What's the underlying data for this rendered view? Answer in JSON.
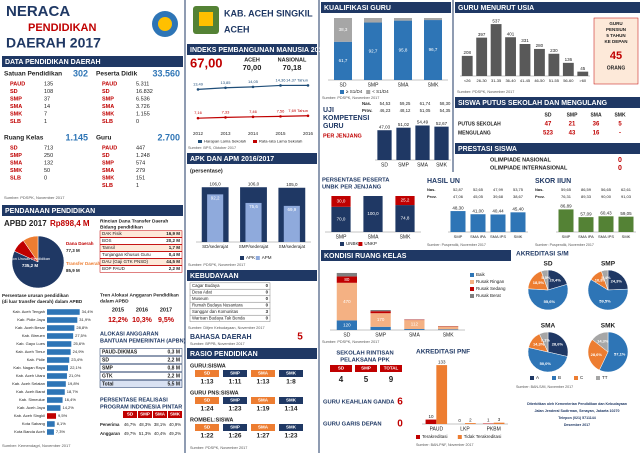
{
  "header": {
    "title1": "NERACA",
    "title2": "PENDIDIKAN",
    "title3": "DAERAH 2017",
    "region": "KAB. ACEH SINGKIL",
    "province": "ACEH"
  },
  "data_pendidikan": {
    "title": "DATA PENDIDIKAN DAERAH",
    "satuan": {
      "label": "Satuan Pendidikan",
      "total": "302",
      "rows": [
        [
          "PAUD",
          "135"
        ],
        [
          "SD",
          "108"
        ],
        [
          "SMP",
          "37"
        ],
        [
          "SMA",
          "14"
        ],
        [
          "SMK",
          "7"
        ],
        [
          "SLB",
          "1"
        ]
      ]
    },
    "peserta": {
      "label": "Peserta Didik",
      "total": "33.560",
      "rows": [
        [
          "PAUD",
          "5.311"
        ],
        [
          "SD",
          "16.832"
        ],
        [
          "SMP",
          "6.536"
        ],
        [
          "SMA",
          "3.726"
        ],
        [
          "SMK",
          "1.155"
        ],
        [
          "SLB",
          "0"
        ]
      ]
    },
    "ruang": {
      "label": "Ruang Kelas",
      "total": "1.145",
      "rows": [
        [
          "SD",
          "713"
        ],
        [
          "SMP",
          "250"
        ],
        [
          "SMA",
          "132"
        ],
        [
          "SMK",
          "50"
        ],
        [
          "SLB",
          "0"
        ]
      ]
    },
    "guru": {
      "label": "Guru",
      "total": "2.700",
      "rows": [
        [
          "PAUD",
          "447"
        ],
        [
          "SD",
          "1.248"
        ],
        [
          "SMP",
          "574"
        ],
        [
          "SMA",
          "279"
        ],
        [
          "SMK",
          "151"
        ],
        [
          "SLB",
          "1"
        ]
      ]
    },
    "source": "Sumber: PDSPK, November 2017"
  },
  "pendanaan": {
    "title": "PENDANAAN PENDIDIKAN",
    "apbd_label": "APBD 2017",
    "apbd_value": "Rp898,4 M",
    "pie": {
      "type": "pie",
      "labels": [
        "Non Urusan Pendidikan",
        "Dana Daerah",
        "Transfer Daerah"
      ],
      "values": [
        735.2,
        77.3,
        85.9
      ],
      "value_labels": [
        "735,2 M",
        "77,3 M",
        "85,9 M"
      ],
      "colors": [
        "#1f3864",
        "#c00000",
        "#ed7d31"
      ]
    },
    "rincian": {
      "title": [
        "Rincian Dana Transfer Daerah",
        "Bidang pendidikan"
      ],
      "rows": [
        [
          "DAK Fisik",
          "16,9 M"
        ],
        [
          "BOS",
          "20,2 M"
        ],
        [
          "Tamsil",
          "1,7 M"
        ],
        [
          "Tunjangan Khusus Guru",
          "0,4 M"
        ],
        [
          "DAU (Gaji GTK PNSD)",
          "44,5 M"
        ],
        [
          "BOP PAUD",
          "2,2 M"
        ]
      ]
    },
    "persentase": {
      "type": "hbar",
      "title": [
        "Persentase urusan pendidikan",
        "(di luar transfer daerah) dalam APBD"
      ],
      "categories": [
        "Kab. Aceh Tengah",
        "Kab. Pidie Jaya",
        "Kab. Aceh Besar",
        "Kab. Bireuen",
        "Kab. Gayo Lues",
        "Kab. Aceh Timur",
        "Kab. Pidie",
        "Kab. Nagan Raya",
        "Kab. Aceh Utara",
        "Kab. Aceh Selatan",
        "Kab. Aceh Barat",
        "Kab. Simeulue",
        "Kab. Aceh Jaya",
        "Kab. Aceh Singkil",
        "Kota Sabang",
        "Kota Banda Aceh"
      ],
      "values": [
        34.4,
        31.9,
        28.8,
        27.5,
        25.6,
        24.9,
        23.4,
        22.1,
        21.0,
        19.8,
        18.7,
        16.4,
        14.2,
        9.5,
        8.1,
        7.3
      ],
      "value_labels": [
        "34,4%",
        "31,9%",
        "28,8%",
        "27,5%",
        "25,6%",
        "24,9%",
        "23,4%",
        "22,1%",
        "21,0%",
        "19,8%",
        "18,7%",
        "16,4%",
        "14,2%",
        "9,5%",
        "8,1%",
        "7,3%"
      ],
      "colors": [
        "#2e75b6",
        "#2e75b6",
        "#2e75b6",
        "#2e75b6",
        "#2e75b6",
        "#2e75b6",
        "#2e75b6",
        "#2e75b6",
        "#2e75b6",
        "#2e75b6",
        "#2e75b6",
        "#2e75b6",
        "#2e75b6",
        "#c00000",
        "#2e75b6",
        "#2e75b6"
      ],
      "xlim": [
        0,
        40
      ]
    },
    "tren": {
      "title": [
        "Tren Alokasi Anggaran Pendidikan",
        "dalam APBD"
      ],
      "years": [
        "2015",
        "2016",
        "2017"
      ],
      "values": [
        "12,2%",
        "10,3%",
        "9,5%"
      ]
    },
    "apbn": {
      "title": [
        "ALOKASI ANGGARAN",
        "BANTUAN PEMERINTAH (APBN)"
      ],
      "rows": [
        [
          "PAUD-DIKMAS",
          "0,3 M"
        ],
        [
          "SD",
          "2,2 M"
        ],
        [
          "SMP",
          "0,8 M"
        ],
        [
          "GTK",
          "2,2 M"
        ],
        [
          "Total",
          "5,5 M"
        ]
      ]
    },
    "pip": {
      "title": [
        "PERSENTASE REALISASI",
        "PROGRAM INDONESIA PINTAR"
      ],
      "header": [
        "SD",
        "SMP",
        "SMA",
        "SMK"
      ],
      "rows": [
        [
          "Penerima",
          "46,7%",
          "48,3%",
          "38,1%",
          "40,9%"
        ],
        [
          "Anggaran",
          "49,7%",
          "51,3%",
          "40,4%",
          "49,2%"
        ]
      ]
    },
    "source": "Sumber: Kemendagri, November 2017"
  },
  "ipm": {
    "title": "INDEKS PEMBANGUNAN MANUSIA 2016",
    "value": "67,00",
    "aceh_label": "ACEH",
    "aceh": "70,00",
    "nas_label": "NASIONAL",
    "nas": "70,18",
    "chart": {
      "type": "line",
      "x": [
        "2012",
        "2013",
        "2014",
        "2015",
        "2016"
      ],
      "ylim": [
        5,
        16
      ],
      "series": [
        {
          "name": "Harapan Lama Sekolah",
          "color": "#1f4e79",
          "values": [
            13.49,
            13.85,
            14.05,
            14.36,
            14.37
          ],
          "value_labels": [
            "13,49",
            "13,85",
            "14,05",
            "14,36",
            "14,37 Tahun"
          ]
        },
        {
          "name": "Rata-rata Lama Sekolah",
          "color": "#c00000",
          "values": [
            7.16,
            7.33,
            7.46,
            7.56,
            7.69
          ],
          "value_labels": [
            "7,16",
            "7,33",
            "7,46",
            "7,56",
            "7,69 Tahun"
          ]
        }
      ]
    },
    "source": "Sumber: BPS, Oktober 2017"
  },
  "apk": {
    "type": "bar",
    "title": "APK DAN APM 2016/2017",
    "subtitle": "(persentase)",
    "categories": [
      "SD/sederajat",
      "SMP/sederajat",
      "SM/sederajat"
    ],
    "ylim": [
      0,
      120
    ],
    "series": [
      {
        "name": "APK",
        "color": "#1f3864",
        "values": [
          106.0,
          106.0,
          105.0
        ],
        "value_labels": [
          "106,0",
          "106,0",
          "105,0"
        ]
      },
      {
        "name": "APM",
        "color": "#8faadc",
        "values": [
          92.2,
          75.6,
          69.9
        ],
        "value_labels": [
          "92,2",
          "75,6",
          "69,9"
        ]
      }
    ],
    "source": "Sumber: PDSPK, November 2017"
  },
  "kebudayaan": {
    "title": "KEBUDAYAAN",
    "rows": [
      [
        "Cagar Budaya",
        "0"
      ],
      [
        "Desa Adat",
        "0"
      ],
      [
        "Museum",
        "0"
      ],
      [
        "Rumah Budaya Nusantara",
        "0"
      ],
      [
        "Sanggar dan Komunitas",
        "3"
      ],
      [
        "Warisan Budaya Tak Benda",
        "0"
      ]
    ],
    "source": "Sumber: Ditjen Kebudayaan, November 2017"
  },
  "bahasa": {
    "title": "BAHASA DAERAH",
    "value": "5",
    "source": "Sumber: BPPB, November 2017"
  },
  "rasio": {
    "title": "RASIO PENDIDIKAN",
    "groups": [
      {
        "label": "GURU:SISWA",
        "header": [
          "SD",
          "SMP",
          "SMA",
          "SMK"
        ],
        "values": [
          "1:13",
          "1:11",
          "1:13",
          "1:8"
        ]
      },
      {
        "label": "GURU PNS:SISWA",
        "header": [
          "SD",
          "SMP",
          "SMA",
          "SMK"
        ],
        "values": [
          "1:24",
          "1:23",
          "1:19",
          "1:14"
        ]
      },
      {
        "label": "ROMBEL:SISWA",
        "header": [
          "SD",
          "SMP",
          "SMA",
          "SMK"
        ],
        "values": [
          "1:22",
          "1:26",
          "1:27",
          "1:23"
        ]
      }
    ],
    "source": "Sumber: PDSPK, November 2017"
  },
  "kualifikasi": {
    "type": "bar",
    "title": "KUALIFIKASI GURU",
    "categories": [
      "SD",
      "SMP",
      "SMA",
      "SMK"
    ],
    "ylim": [
      0,
      100
    ],
    "series": [
      {
        "name": "≥ S1/D4",
        "color": "#2e75b6",
        "values": [
          61.7,
          92.7,
          95.8,
          96.7
        ],
        "value_labels": [
          "61,7",
          "92,7",
          "95,8",
          "96,7"
        ]
      },
      {
        "name": "< S1/D4",
        "color": "#a6a6a6",
        "values": [
          38.3,
          7.3,
          4.2,
          3.3
        ],
        "value_labels": [
          "38,3",
          "7,3",
          "4,2",
          "3,3"
        ]
      }
    ],
    "source": "Sumber: PDSPK, November 2017"
  },
  "ukg": {
    "type": "bar",
    "title": [
      "UJI",
      "KOMPETENSI",
      "GURU"
    ],
    "subtitle": "PER JENJANG",
    "categories": [
      "SD",
      "SMP",
      "SMA",
      "SMK"
    ],
    "ylim": [
      0,
      60
    ],
    "color": "#1f3864",
    "values": [
      47.03,
      51.02,
      54.49,
      52.67
    ],
    "value_labels": [
      "47,03",
      "51,02",
      "54,49",
      "52,67"
    ],
    "table": [
      [
        "Nas.",
        "54,53",
        "59,25",
        "61,74",
        "58,30"
      ],
      [
        "Prov.",
        "46,23",
        "48,12",
        "51,05",
        "54,35"
      ]
    ]
  },
  "unbk": {
    "type": "bar",
    "title": [
      "PERSENTASE PESERTA",
      "UNBK PER JENJANG"
    ],
    "categories": [
      "SMP",
      "SMA",
      "SMK"
    ],
    "ylim": [
      0,
      100
    ],
    "series": [
      {
        "name": "UNBK",
        "color": "#1f3864",
        "values": [
          70.0,
          100.0,
          74.8
        ],
        "value_labels": [
          "70,0",
          "100,0",
          "74,8"
        ]
      },
      {
        "name": "UNKP",
        "color": "#c00000",
        "values": [
          30.0,
          0.0,
          25.2
        ],
        "value_labels": [
          "30,0",
          "0,0",
          "25,2"
        ]
      }
    ]
  },
  "hasil_un": {
    "type": "bar",
    "title": "HASIL UN",
    "categories": [
      "SMP",
      "SMA IPA",
      "SMA IPS",
      "SMK"
    ],
    "ylim": [
      0,
      60
    ],
    "color": "#2e75b6",
    "values": [
      48.3,
      41.0,
      40.44,
      45.4
    ],
    "value_labels": [
      "48,30",
      "41,00",
      "40,44",
      "45,40"
    ],
    "table": [
      [
        "Nas.",
        "52,87",
        "52,65",
        "47,99",
        "53,75"
      ],
      [
        "Prov.",
        "47,06",
        "45,05",
        "39,68",
        "38,67"
      ]
    ],
    "source": "Sumber: Puspendik, November 2017"
  },
  "iiun": {
    "type": "bar",
    "title": "SKOR IIUN",
    "categories": [
      "SMP",
      "SMA IPA",
      "SMA IPS",
      "SMK"
    ],
    "ylim": [
      0,
      100
    ],
    "color": "#548235",
    "values": [
      86.89,
      57.09,
      60.43,
      59.05
    ],
    "value_labels": [
      "86,89",
      "57,09",
      "60,43",
      "59,05"
    ],
    "table": [
      [
        "Nas.",
        "59,65",
        "86,59",
        "56,65",
        "62,61"
      ],
      [
        "Prov.",
        "76,31",
        "89,33",
        "90,00",
        "91,03"
      ]
    ],
    "source": "Sumber: Puspendik, November 2017"
  },
  "kondisi": {
    "type": "bar",
    "title": "KONDISI RUANG KELAS",
    "categories": [
      "SD",
      "SMP",
      "SMA",
      "SMK"
    ],
    "ylim": [
      0,
      800
    ],
    "series": [
      {
        "name": "Baik",
        "color": "#2e75b6",
        "values": [
          120,
          40,
          12,
          8
        ]
      },
      {
        "name": "Rusak Ringan",
        "color": "#f4b183",
        "values": [
          470,
          170,
          112,
          35
        ]
      },
      {
        "name": "Rusak Sedang",
        "color": "#c00000",
        "values": [
          80,
          25,
          6,
          5
        ]
      },
      {
        "name": "Rusak Berat",
        "color": "#7f7f7f",
        "values": [
          43,
          15,
          2,
          2
        ]
      }
    ],
    "source": "Sumber: PDSPK, November 2017"
  },
  "rintisan": {
    "title": [
      "SEKOLAH RINTISAN",
      "PELAKSANA PPK"
    ],
    "header": [
      "SD",
      "SMP",
      "TOTAL"
    ],
    "values": [
      "4",
      "5",
      "9"
    ]
  },
  "keahlian": {
    "title": "GURU KEAHLIAN GANDA",
    "value": "6"
  },
  "garis_depan": {
    "title": "GURU GARIS DEPAN",
    "value": "0"
  },
  "pnf": {
    "type": "bar",
    "title": "AKREDITASI PNF",
    "categories": [
      "PAUD",
      "LKP",
      "PKBM"
    ],
    "ylim": [
      0,
      140
    ],
    "series": [
      {
        "name": "Terakreditasi",
        "color": "#c00000",
        "values": [
          10,
          0,
          1
        ]
      },
      {
        "name": "Tidak Terakreditasi",
        "color": "#ed7d31",
        "values": [
          133,
          2,
          3
        ]
      }
    ],
    "source": "Sumber: BAN-PNF, November 2017"
  },
  "usia": {
    "type": "bar",
    "title": "GURU MENURUT USIA",
    "categories": [
      "<26",
      "26-30",
      "31-35",
      "36-40",
      "41-45",
      "46-50",
      "51-55",
      "56-60",
      ">60"
    ],
    "ylim": [
      0,
      600
    ],
    "color": "#595959",
    "values": [
      208,
      397,
      537,
      401,
      331,
      280,
      230,
      136,
      45
    ],
    "note": [
      "GURU",
      "PENSIUN",
      "5 TAHUN",
      "KE DEPAN"
    ],
    "note_value": "45",
    "note_unit": "ORANG",
    "source": "Sumber: PDSPK, November 2017"
  },
  "putus": {
    "title": "SISWA PUTUS SEKOLAH DAN MENGULANG",
    "header": [
      "SD",
      "SMP",
      "SMA",
      "SMK"
    ],
    "rows": [
      [
        "PUTUS SEKOLAH",
        "47",
        "21",
        "36",
        "5"
      ],
      [
        "MENGULANG",
        "523",
        "43",
        "16",
        "-"
      ]
    ]
  },
  "prestasi": {
    "title": "PRESTASI SISWA",
    "rows": [
      [
        "OLIMPIADE NASIONAL",
        "0"
      ],
      [
        "OLIMPIADE INTERNASIONAL",
        "0"
      ]
    ]
  },
  "akreditasi": {
    "title": "AKREDITASI S/M",
    "labels": [
      "A",
      "B",
      "C",
      "TT"
    ],
    "colors": [
      "#1f3864",
      "#2e75b6",
      "#ed7d31",
      "#a6a6a6"
    ],
    "pies": [
      {
        "type": "pie",
        "name": "SD",
        "values": [
          20.4,
          55.6,
          18.5,
          5.5
        ],
        "value_labels": [
          "20,4%",
          "55,6%",
          "18,5%",
          "5,5%"
        ]
      },
      {
        "type": "pie",
        "name": "SMP",
        "values": [
          24.3,
          59.5,
          10.8,
          5.4
        ],
        "value_labels": [
          "24,3%",
          "59,5%",
          "10,8%",
          "5,4%"
        ]
      },
      {
        "type": "pie",
        "name": "SMA",
        "values": [
          28.6,
          50.0,
          14.3,
          7.1
        ],
        "value_labels": [
          "28,6%",
          "50,0%",
          "14,3%",
          "7,1%"
        ]
      },
      {
        "type": "pie",
        "name": "SMK",
        "values": [
          0.0,
          57.1,
          28.6,
          14.3
        ],
        "value_labels": [
          "0,0%",
          "57,1%",
          "28,6%",
          "14,3%"
        ]
      }
    ],
    "source": "Sumber: BAN-S/M, November 2017"
  },
  "footer": [
    "Diterbitkan oleh Kementerian Pendidikan dan Kebudayaan",
    "Jalan Jenderal Sudirman, Senayan, Jakarta 10270",
    "Telepon (021) 5711144",
    "Desember 2017"
  ]
}
